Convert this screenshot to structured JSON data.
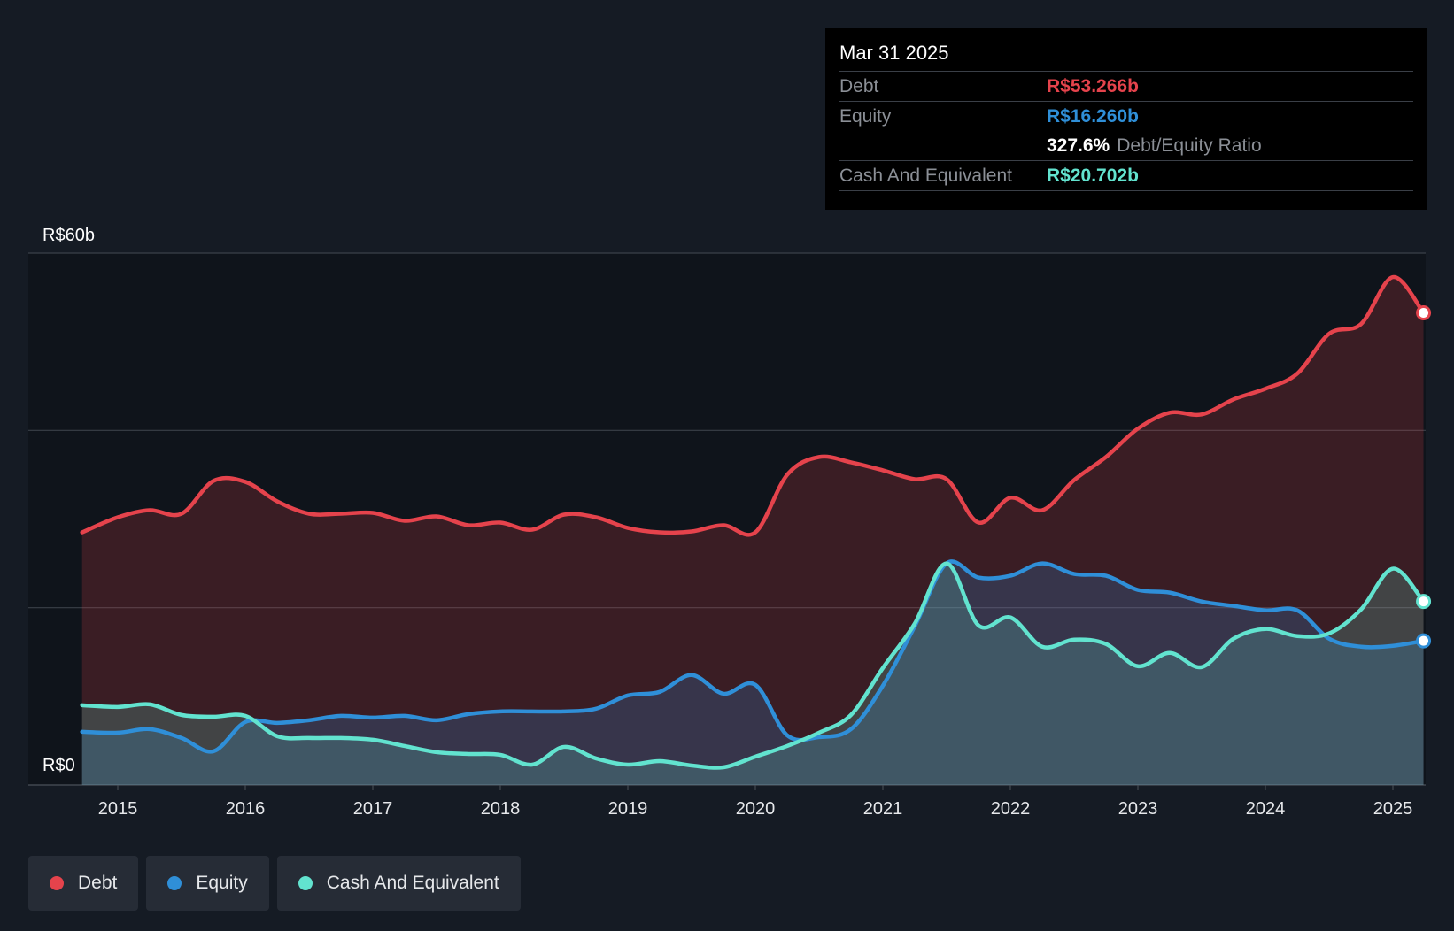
{
  "chart_data": {
    "type": "area",
    "y_axis": {
      "labels": [
        "R$60b",
        "R$0"
      ],
      "ylim": [
        0,
        60
      ],
      "unit": "R$ billions",
      "gridlines": [
        0,
        20,
        40,
        60
      ]
    },
    "x_axis": {
      "ticks": [
        "2015",
        "2016",
        "2017",
        "2018",
        "2019",
        "2020",
        "2021",
        "2022",
        "2023",
        "2024",
        "2025"
      ],
      "xlim": [
        2014.5,
        2025.3
      ]
    },
    "series": [
      {
        "name": "Debt",
        "color": "#e5434c",
        "fill": "rgba(229,67,76,0.20)",
        "points": [
          [
            2014.72,
            28.5
          ],
          [
            2015.0,
            30.2
          ],
          [
            2015.25,
            31.0
          ],
          [
            2015.5,
            30.6
          ],
          [
            2015.75,
            34.3
          ],
          [
            2016.0,
            34.2
          ],
          [
            2016.25,
            32.0
          ],
          [
            2016.5,
            30.6
          ],
          [
            2016.75,
            30.6
          ],
          [
            2017.0,
            30.7
          ],
          [
            2017.25,
            29.8
          ],
          [
            2017.5,
            30.3
          ],
          [
            2017.75,
            29.3
          ],
          [
            2018.0,
            29.6
          ],
          [
            2018.25,
            28.8
          ],
          [
            2018.5,
            30.5
          ],
          [
            2018.75,
            30.2
          ],
          [
            2019.0,
            29.0
          ],
          [
            2019.25,
            28.5
          ],
          [
            2019.5,
            28.6
          ],
          [
            2019.75,
            29.3
          ],
          [
            2020.0,
            28.5
          ],
          [
            2020.25,
            35.0
          ],
          [
            2020.5,
            37.0
          ],
          [
            2020.75,
            36.4
          ],
          [
            2021.0,
            35.5
          ],
          [
            2021.25,
            34.5
          ],
          [
            2021.5,
            34.5
          ],
          [
            2021.75,
            29.6
          ],
          [
            2022.0,
            32.4
          ],
          [
            2022.25,
            31.0
          ],
          [
            2022.5,
            34.4
          ],
          [
            2022.75,
            37.0
          ],
          [
            2023.0,
            40.2
          ],
          [
            2023.25,
            42.0
          ],
          [
            2023.5,
            41.8
          ],
          [
            2023.75,
            43.5
          ],
          [
            2024.0,
            44.7
          ],
          [
            2024.25,
            46.4
          ],
          [
            2024.5,
            50.9
          ],
          [
            2024.75,
            52.0
          ],
          [
            2025.0,
            57.3
          ],
          [
            2025.24,
            53.266
          ]
        ]
      },
      {
        "name": "Equity",
        "color": "#2f8fd8",
        "fill": "rgba(47,143,216,0.22)",
        "points": [
          [
            2014.72,
            6.0
          ],
          [
            2015.0,
            5.9
          ],
          [
            2015.25,
            6.3
          ],
          [
            2015.5,
            5.3
          ],
          [
            2015.75,
            3.8
          ],
          [
            2016.0,
            7.1
          ],
          [
            2016.25,
            7.0
          ],
          [
            2016.5,
            7.3
          ],
          [
            2016.75,
            7.8
          ],
          [
            2017.0,
            7.6
          ],
          [
            2017.25,
            7.8
          ],
          [
            2017.5,
            7.3
          ],
          [
            2017.75,
            8.0
          ],
          [
            2018.0,
            8.3
          ],
          [
            2018.25,
            8.3
          ],
          [
            2018.5,
            8.3
          ],
          [
            2018.75,
            8.6
          ],
          [
            2019.0,
            10.1
          ],
          [
            2019.25,
            10.5
          ],
          [
            2019.5,
            12.4
          ],
          [
            2019.75,
            10.3
          ],
          [
            2020.0,
            11.3
          ],
          [
            2020.25,
            5.6
          ],
          [
            2020.5,
            5.4
          ],
          [
            2020.75,
            6.3
          ],
          [
            2021.0,
            11.2
          ],
          [
            2021.25,
            17.9
          ],
          [
            2021.5,
            25.0
          ],
          [
            2021.75,
            23.4
          ],
          [
            2022.0,
            23.6
          ],
          [
            2022.25,
            25.0
          ],
          [
            2022.5,
            23.8
          ],
          [
            2022.75,
            23.6
          ],
          [
            2023.0,
            22.0
          ],
          [
            2023.25,
            21.7
          ],
          [
            2023.5,
            20.7
          ],
          [
            2023.75,
            20.2
          ],
          [
            2024.0,
            19.7
          ],
          [
            2024.25,
            19.7
          ],
          [
            2024.5,
            16.5
          ],
          [
            2024.75,
            15.6
          ],
          [
            2025.0,
            15.7
          ],
          [
            2025.24,
            16.26
          ]
        ]
      },
      {
        "name": "Cash And Equivalent",
        "color": "#62e3cf",
        "fill": "rgba(98,227,207,0.20)",
        "points": [
          [
            2014.72,
            9.0
          ],
          [
            2015.0,
            8.8
          ],
          [
            2015.25,
            9.1
          ],
          [
            2015.5,
            7.9
          ],
          [
            2015.75,
            7.7
          ],
          [
            2016.0,
            7.8
          ],
          [
            2016.25,
            5.5
          ],
          [
            2016.5,
            5.3
          ],
          [
            2016.75,
            5.3
          ],
          [
            2017.0,
            5.1
          ],
          [
            2017.25,
            4.4
          ],
          [
            2017.5,
            3.7
          ],
          [
            2017.75,
            3.5
          ],
          [
            2018.0,
            3.4
          ],
          [
            2018.25,
            2.3
          ],
          [
            2018.5,
            4.3
          ],
          [
            2018.75,
            3.0
          ],
          [
            2019.0,
            2.3
          ],
          [
            2019.25,
            2.7
          ],
          [
            2019.5,
            2.2
          ],
          [
            2019.75,
            2.0
          ],
          [
            2020.0,
            3.2
          ],
          [
            2020.25,
            4.4
          ],
          [
            2020.5,
            5.9
          ],
          [
            2020.75,
            7.9
          ],
          [
            2021.0,
            13.2
          ],
          [
            2021.25,
            18.2
          ],
          [
            2021.5,
            25.0
          ],
          [
            2021.75,
            18.0
          ],
          [
            2022.0,
            18.9
          ],
          [
            2022.25,
            15.6
          ],
          [
            2022.5,
            16.4
          ],
          [
            2022.75,
            15.9
          ],
          [
            2023.0,
            13.4
          ],
          [
            2023.25,
            14.9
          ],
          [
            2023.5,
            13.3
          ],
          [
            2023.75,
            16.5
          ],
          [
            2024.0,
            17.6
          ],
          [
            2024.25,
            16.8
          ],
          [
            2024.5,
            17.1
          ],
          [
            2024.75,
            19.8
          ],
          [
            2025.0,
            24.4
          ],
          [
            2025.24,
            20.702
          ]
        ]
      }
    ]
  },
  "tooltip": {
    "date": "Mar 31 2025",
    "debt_label": "Debt",
    "debt_value": "R$53.266b",
    "equity_label": "Equity",
    "equity_value": "R$16.260b",
    "ratio_value": "327.6%",
    "ratio_label": "Debt/Equity Ratio",
    "cash_label": "Cash And Equivalent",
    "cash_value": "R$20.702b"
  },
  "legend": [
    {
      "label": "Debt",
      "color": "#e5434c"
    },
    {
      "label": "Equity",
      "color": "#2f8fd8"
    },
    {
      "label": "Cash And Equivalent",
      "color": "#62e3cf"
    }
  ]
}
